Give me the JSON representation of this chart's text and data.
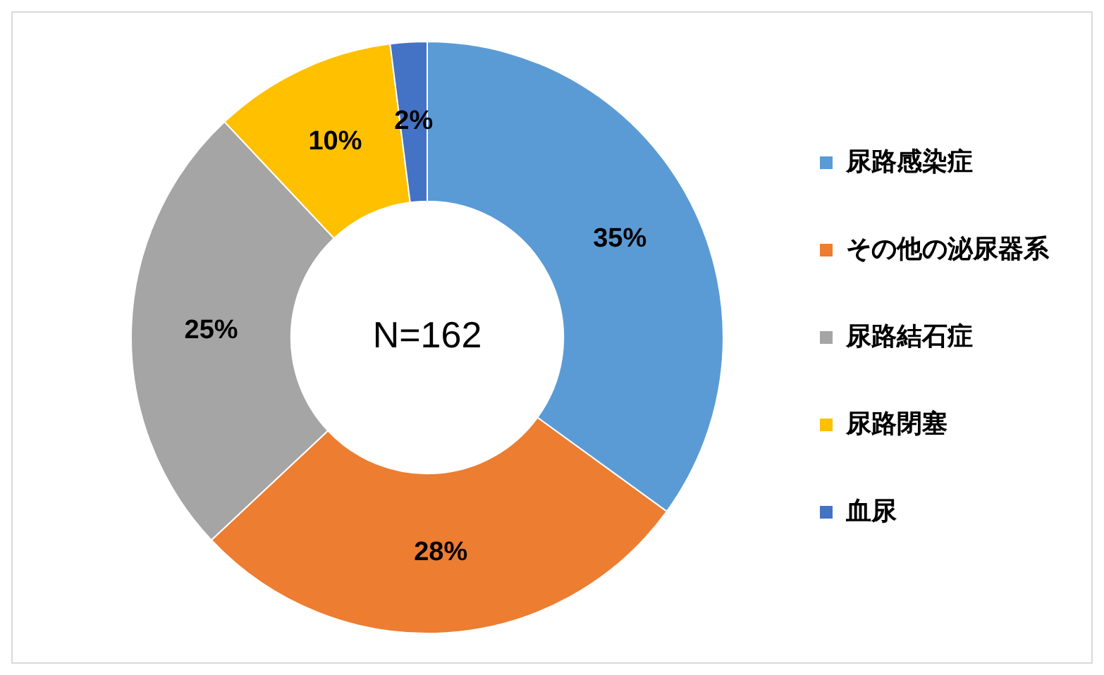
{
  "chart_data": {
    "type": "donut",
    "categories": [
      "尿路感染症",
      "その他の泌尿器系",
      "尿路結石症",
      "尿路閉塞",
      "血尿"
    ],
    "values": [
      35,
      28,
      25,
      10,
      2
    ],
    "colors": [
      "#5b9bd5",
      "#ed7d31",
      "#a5a5a5",
      "#ffc000",
      "#4472c4"
    ],
    "value_labels": [
      "35%",
      "28%",
      "25%",
      "10%",
      "2%"
    ],
    "annotations": [
      "N=162"
    ],
    "legend": "right"
  }
}
